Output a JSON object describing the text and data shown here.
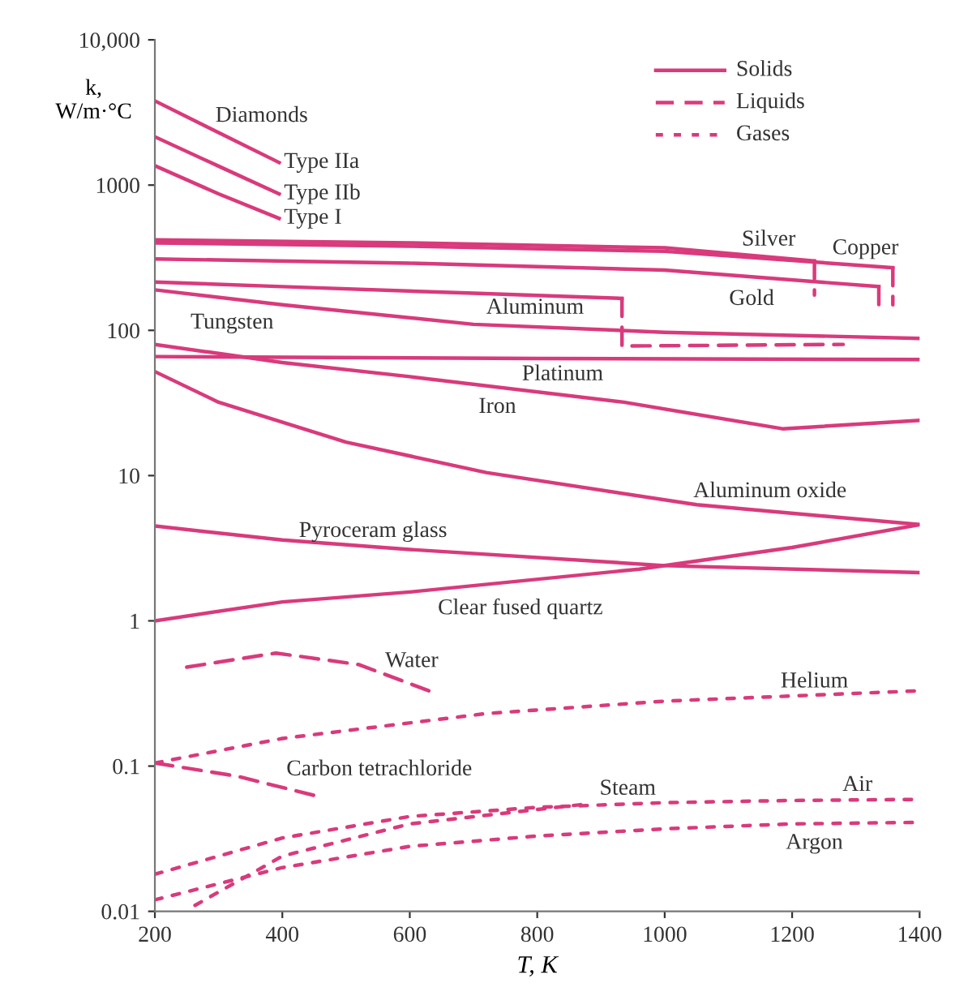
{
  "chart_data": {
    "type": "line",
    "xlabel": "T, K",
    "ylabel": "k,\nW/m·°C",
    "log": "y",
    "grid": false,
    "xlim": [
      200,
      1400
    ],
    "xticks": [
      200,
      400,
      600,
      800,
      1000,
      1200,
      1400
    ],
    "ylim": [
      0.01,
      10000
    ],
    "yticks": [
      {
        "value": 0.01,
        "label": "0.01"
      },
      {
        "value": 0.1,
        "label": "0.1"
      },
      1,
      10,
      100,
      1000,
      {
        "value": 10000,
        "label": "10,000"
      }
    ],
    "series": [
      {
        "color": "#d93a7c",
        "line_style": "solid",
        "x": [
          200,
          300,
          395
        ],
        "values": [
          3800,
          2300,
          1430
        ]
      },
      {
        "color": "#d93a7c",
        "line_style": "solid",
        "x": [
          200,
          300,
          395
        ],
        "values": [
          2150,
          1350,
          870
        ]
      },
      {
        "color": "#d93a7c",
        "line_style": "solid",
        "x": [
          200,
          300,
          395
        ],
        "values": [
          1360,
          870,
          590
        ]
      },
      {
        "color": "#d93a7c",
        "line_style": "solid",
        "x": [
          200,
          600,
          1000,
          1235
        ],
        "values": [
          420,
          400,
          370,
          300
        ]
      },
      {
        "color": "#d93a7c",
        "line_style": "solid",
        "x": [
          200,
          600,
          1000,
          1358
        ],
        "values": [
          400,
          380,
          350,
          270
        ]
      },
      {
        "color": "#d93a7c",
        "line_style": "solid",
        "x": [
          200,
          600,
          1000,
          1336
        ],
        "values": [
          310,
          290,
          260,
          200
        ]
      },
      {
        "color": "#d93a7c",
        "line_style": "solid",
        "x": [
          200,
          400,
          700,
          933
        ],
        "values": [
          215,
          200,
          180,
          166
        ]
      },
      {
        "color": "#d93a7c",
        "line_style": "solid",
        "x": [
          200,
          400,
          700,
          1000,
          1400
        ],
        "values": [
          190,
          150,
          110,
          97,
          88
        ]
      },
      {
        "color": "#d93a7c",
        "line_style": "solid",
        "x": [
          200,
          800,
          1400
        ],
        "values": [
          66,
          64,
          63
        ]
      },
      {
        "color": "#d93a7c",
        "line_style": "solid",
        "x": [
          200,
          400,
          600,
          936,
          1185,
          1400
        ],
        "values": [
          80,
          60,
          48,
          32,
          21,
          24
        ]
      },
      {
        "color": "#d93a7c",
        "line_style": "solid",
        "x": [
          200,
          300,
          500,
          720,
          1050,
          1400
        ],
        "values": [
          52,
          32,
          17,
          10.5,
          6.3,
          4.6
        ]
      },
      {
        "color": "#d93a7c",
        "line_style": "solid",
        "x": [
          200,
          400,
          600,
          1000,
          1400
        ],
        "values": [
          4.5,
          3.6,
          3.1,
          2.4,
          2.15
        ]
      },
      {
        "color": "#d93a7c",
        "line_style": "solid",
        "x": [
          200,
          400,
          600,
          960,
          1200,
          1400
        ],
        "values": [
          1.0,
          1.35,
          1.58,
          2.27,
          3.2,
          4.6
        ]
      },
      {
        "color": "#d93a7c",
        "line_style": "dashed",
        "x": [
          250,
          390,
          520,
          630
        ],
        "values": [
          0.48,
          0.6,
          0.5,
          0.33
        ]
      },
      {
        "color": "#d93a7c",
        "line_style": "dashed",
        "x": [
          200,
          330,
          449
        ],
        "values": [
          0.105,
          0.085,
          0.063
        ]
      },
      {
        "color": "#d93a7c",
        "line_style": "dashed",
        "x": [
          933,
          933,
          1280
        ],
        "values": [
          166,
          78,
          80
        ]
      },
      {
        "color": "#d93a7c",
        "line_style": "dashed",
        "x": [
          1235,
          1235
        ],
        "values": [
          300,
          175
        ]
      },
      {
        "color": "#d93a7c",
        "line_style": "dashed",
        "x": [
          1336,
          1336
        ],
        "values": [
          200,
          140
        ]
      },
      {
        "color": "#d93a7c",
        "line_style": "dashed",
        "x": [
          1358,
          1358
        ],
        "values": [
          270,
          150
        ]
      },
      {
        "color": "#d93a7c",
        "line_style": "dotted",
        "x": [
          200,
          400,
          720,
          1000,
          1400
        ],
        "values": [
          0.105,
          0.155,
          0.23,
          0.28,
          0.33
        ]
      },
      {
        "color": "#d93a7c",
        "line_style": "dotted",
        "x": [
          263,
          400,
          600,
          880
        ],
        "values": [
          0.011,
          0.024,
          0.04,
          0.055
        ]
      },
      {
        "color": "#d93a7c",
        "line_style": "dotted",
        "x": [
          200,
          400,
          600,
          800,
          1000,
          1200,
          1400
        ],
        "values": [
          0.018,
          0.032,
          0.045,
          0.052,
          0.056,
          0.058,
          0.059
        ]
      },
      {
        "color": "#d93a7c",
        "line_style": "dotted",
        "x": [
          200,
          400,
          600,
          800,
          1000,
          1200,
          1400
        ],
        "values": [
          0.012,
          0.02,
          0.028,
          0.033,
          0.037,
          0.04,
          0.041
        ]
      }
    ],
    "annotations": [
      "Solids",
      "Liquids",
      "Gases",
      {
        "text": "Diamonds",
        "x": 300,
        "y": 2300
      },
      {
        "text": "Type IIa",
        "x": 395,
        "y": 1430
      },
      {
        "text": "Type IIb",
        "x": 395,
        "y": 870
      },
      {
        "text": "Type I",
        "x": 395,
        "y": 590
      },
      {
        "text": "Silver",
        "x": 1121,
        "y": 332
      },
      {
        "text": "Copper",
        "x": 1263,
        "y": 289
      },
      {
        "text": "Gold",
        "x": 1101,
        "y": 240
      },
      {
        "text": "Aluminum",
        "x": 720,
        "y": 179
      },
      {
        "text": "Tungsten",
        "x": 256,
        "y": 178
      },
      {
        "text": "Platinum",
        "x": 776,
        "y": 64
      },
      {
        "text": "Iron",
        "x": 708,
        "y": 42.3
      },
      {
        "text": "Aluminum oxide",
        "x": 1050,
        "y": 6.3
      },
      {
        "text": "Pyroceram glass",
        "x": 426,
        "y": 3.53
      },
      {
        "text": "Clear fused quartz",
        "x": 644,
        "y": 1.65
      },
      {
        "text": "Water",
        "x": 630,
        "y": 0.33
      },
      {
        "text": "Helium",
        "x": 1182,
        "y": 0.301
      },
      {
        "text": "Carbon tetrachloride",
        "x": 330,
        "y": 0.085
      },
      {
        "text": "Steam",
        "x": 880,
        "y": 0.055
      },
      {
        "text": "Air",
        "x": 1279,
        "y": 0.0584
      },
      {
        "text": "Argon",
        "x": 1190,
        "y": 0.0399
      }
    ]
  }
}
